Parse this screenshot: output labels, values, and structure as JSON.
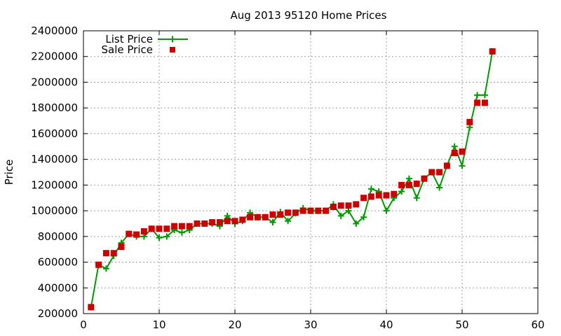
{
  "chart_data": {
    "type": "line",
    "title": "Aug 2013 95120 Home Prices",
    "xlabel": "",
    "ylabel": "Price",
    "xlim": [
      0,
      60
    ],
    "ylim": [
      200000,
      2400000
    ],
    "xticks": [
      0,
      10,
      20,
      30,
      40,
      50,
      60
    ],
    "yticks": [
      200000,
      400000,
      600000,
      800000,
      1000000,
      1200000,
      1400000,
      1600000,
      1800000,
      2000000,
      2200000,
      2400000
    ],
    "xtick_labels": [
      "0",
      "10",
      "20",
      "30",
      "40",
      "50",
      "60"
    ],
    "ytick_labels": [
      "200000",
      "400000",
      "600000",
      "800000",
      "1000000",
      "1200000",
      "1400000",
      "1600000",
      "1800000",
      "2000000",
      "2200000",
      "2400000"
    ],
    "grid": true,
    "legend_position": "top-left",
    "series": [
      {
        "name": "List Price",
        "style": "line-with-plus-markers",
        "color": "#009900",
        "x": [
          1,
          2,
          3,
          4,
          5,
          6,
          7,
          8,
          9,
          10,
          11,
          12,
          13,
          14,
          15,
          16,
          17,
          18,
          19,
          20,
          21,
          22,
          23,
          24,
          25,
          26,
          27,
          28,
          29,
          30,
          31,
          32,
          33,
          34,
          35,
          36,
          37,
          38,
          39,
          40,
          41,
          42,
          43,
          44,
          45,
          46,
          47,
          48,
          49,
          50,
          51,
          52,
          53,
          54
        ],
        "values": [
          250000,
          580000,
          550000,
          650000,
          750000,
          820000,
          800000,
          800000,
          860000,
          790000,
          800000,
          850000,
          830000,
          850000,
          900000,
          900000,
          900000,
          880000,
          960000,
          900000,
          920000,
          985000,
          950000,
          950000,
          910000,
          990000,
          920000,
          980000,
          1020000,
          1000000,
          1000000,
          1000000,
          1050000,
          960000,
          1000000,
          900000,
          950000,
          1170000,
          1150000,
          1000000,
          1100000,
          1150000,
          1250000,
          1100000,
          1250000,
          1300000,
          1180000,
          1350000,
          1500000,
          1350000,
          1650000,
          1900000,
          1900000,
          2240000
        ]
      },
      {
        "name": "Sale Price",
        "style": "square-markers",
        "color": "#cc0000",
        "x": [
          1,
          2,
          3,
          4,
          5,
          6,
          7,
          8,
          9,
          10,
          11,
          12,
          13,
          14,
          15,
          16,
          17,
          18,
          19,
          20,
          21,
          22,
          23,
          24,
          25,
          26,
          27,
          28,
          29,
          30,
          31,
          32,
          33,
          34,
          35,
          36,
          37,
          38,
          39,
          40,
          41,
          42,
          43,
          44,
          45,
          46,
          47,
          48,
          49,
          50,
          51,
          52,
          53,
          54
        ],
        "values": [
          250000,
          580000,
          670000,
          670000,
          720000,
          820000,
          815000,
          840000,
          860000,
          860000,
          860000,
          880000,
          880000,
          880000,
          900000,
          900000,
          910000,
          910000,
          920000,
          920000,
          930000,
          950000,
          950000,
          950000,
          970000,
          970000,
          985000,
          985000,
          1000000,
          1000000,
          1000000,
          1000000,
          1030000,
          1040000,
          1040000,
          1050000,
          1100000,
          1110000,
          1120000,
          1120000,
          1130000,
          1200000,
          1200000,
          1210000,
          1250000,
          1300000,
          1300000,
          1350000,
          1450000,
          1460000,
          1690000,
          1840000,
          1840000,
          2240000
        ]
      }
    ]
  }
}
